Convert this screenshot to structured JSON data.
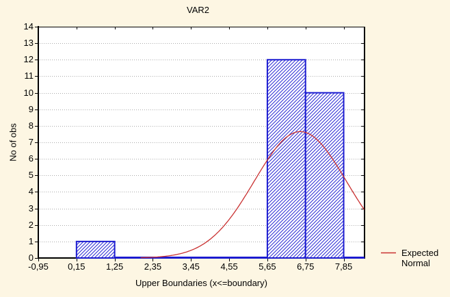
{
  "chart_data": {
    "type": "bar",
    "subtype": "histogram-with-normal-curve",
    "title": "VAR2",
    "xlabel": "Upper Boundaries (x<=boundary)",
    "ylabel": "No of obs",
    "x_tick_labels": [
      "-0,95",
      "0,15",
      "1,25",
      "2,35",
      "3,45",
      "4,55",
      "5,65",
      "6,75",
      "7,85"
    ],
    "boundaries": [
      -0.95,
      0.15,
      1.25,
      2.35,
      3.45,
      4.55,
      5.65,
      6.75,
      7.85
    ],
    "counts": [
      0,
      1,
      0,
      0,
      0,
      0,
      12,
      10
    ],
    "y_ticks": [
      0,
      1,
      2,
      3,
      4,
      5,
      6,
      7,
      8,
      9,
      10,
      11,
      12,
      13,
      14
    ],
    "ylim": [
      0,
      14
    ],
    "xlim": [
      -0.95,
      8.45
    ],
    "grid": "horizontal-dotted",
    "legend": {
      "label_line1": "Expected",
      "label_line2": "Normal",
      "position": "right-bottom"
    },
    "normal_curve": {
      "mean": 6.6,
      "sd": 1.33,
      "peak": 7.65,
      "plotted_from": 2.0,
      "plotted_to": 8.45
    },
    "zero_line_range": [
      1.25,
      8.45
    ],
    "colors": {
      "background": "#fdf6e3",
      "plot_bg": "#ffffff",
      "bar_edge": "#1b1bd0",
      "bar_hatch": "#2a2ad4",
      "bar_fill": "#ffffff",
      "curve": "#c93030",
      "grid": "#aaaaaa",
      "axis": "#000000",
      "text": "#000000"
    }
  }
}
